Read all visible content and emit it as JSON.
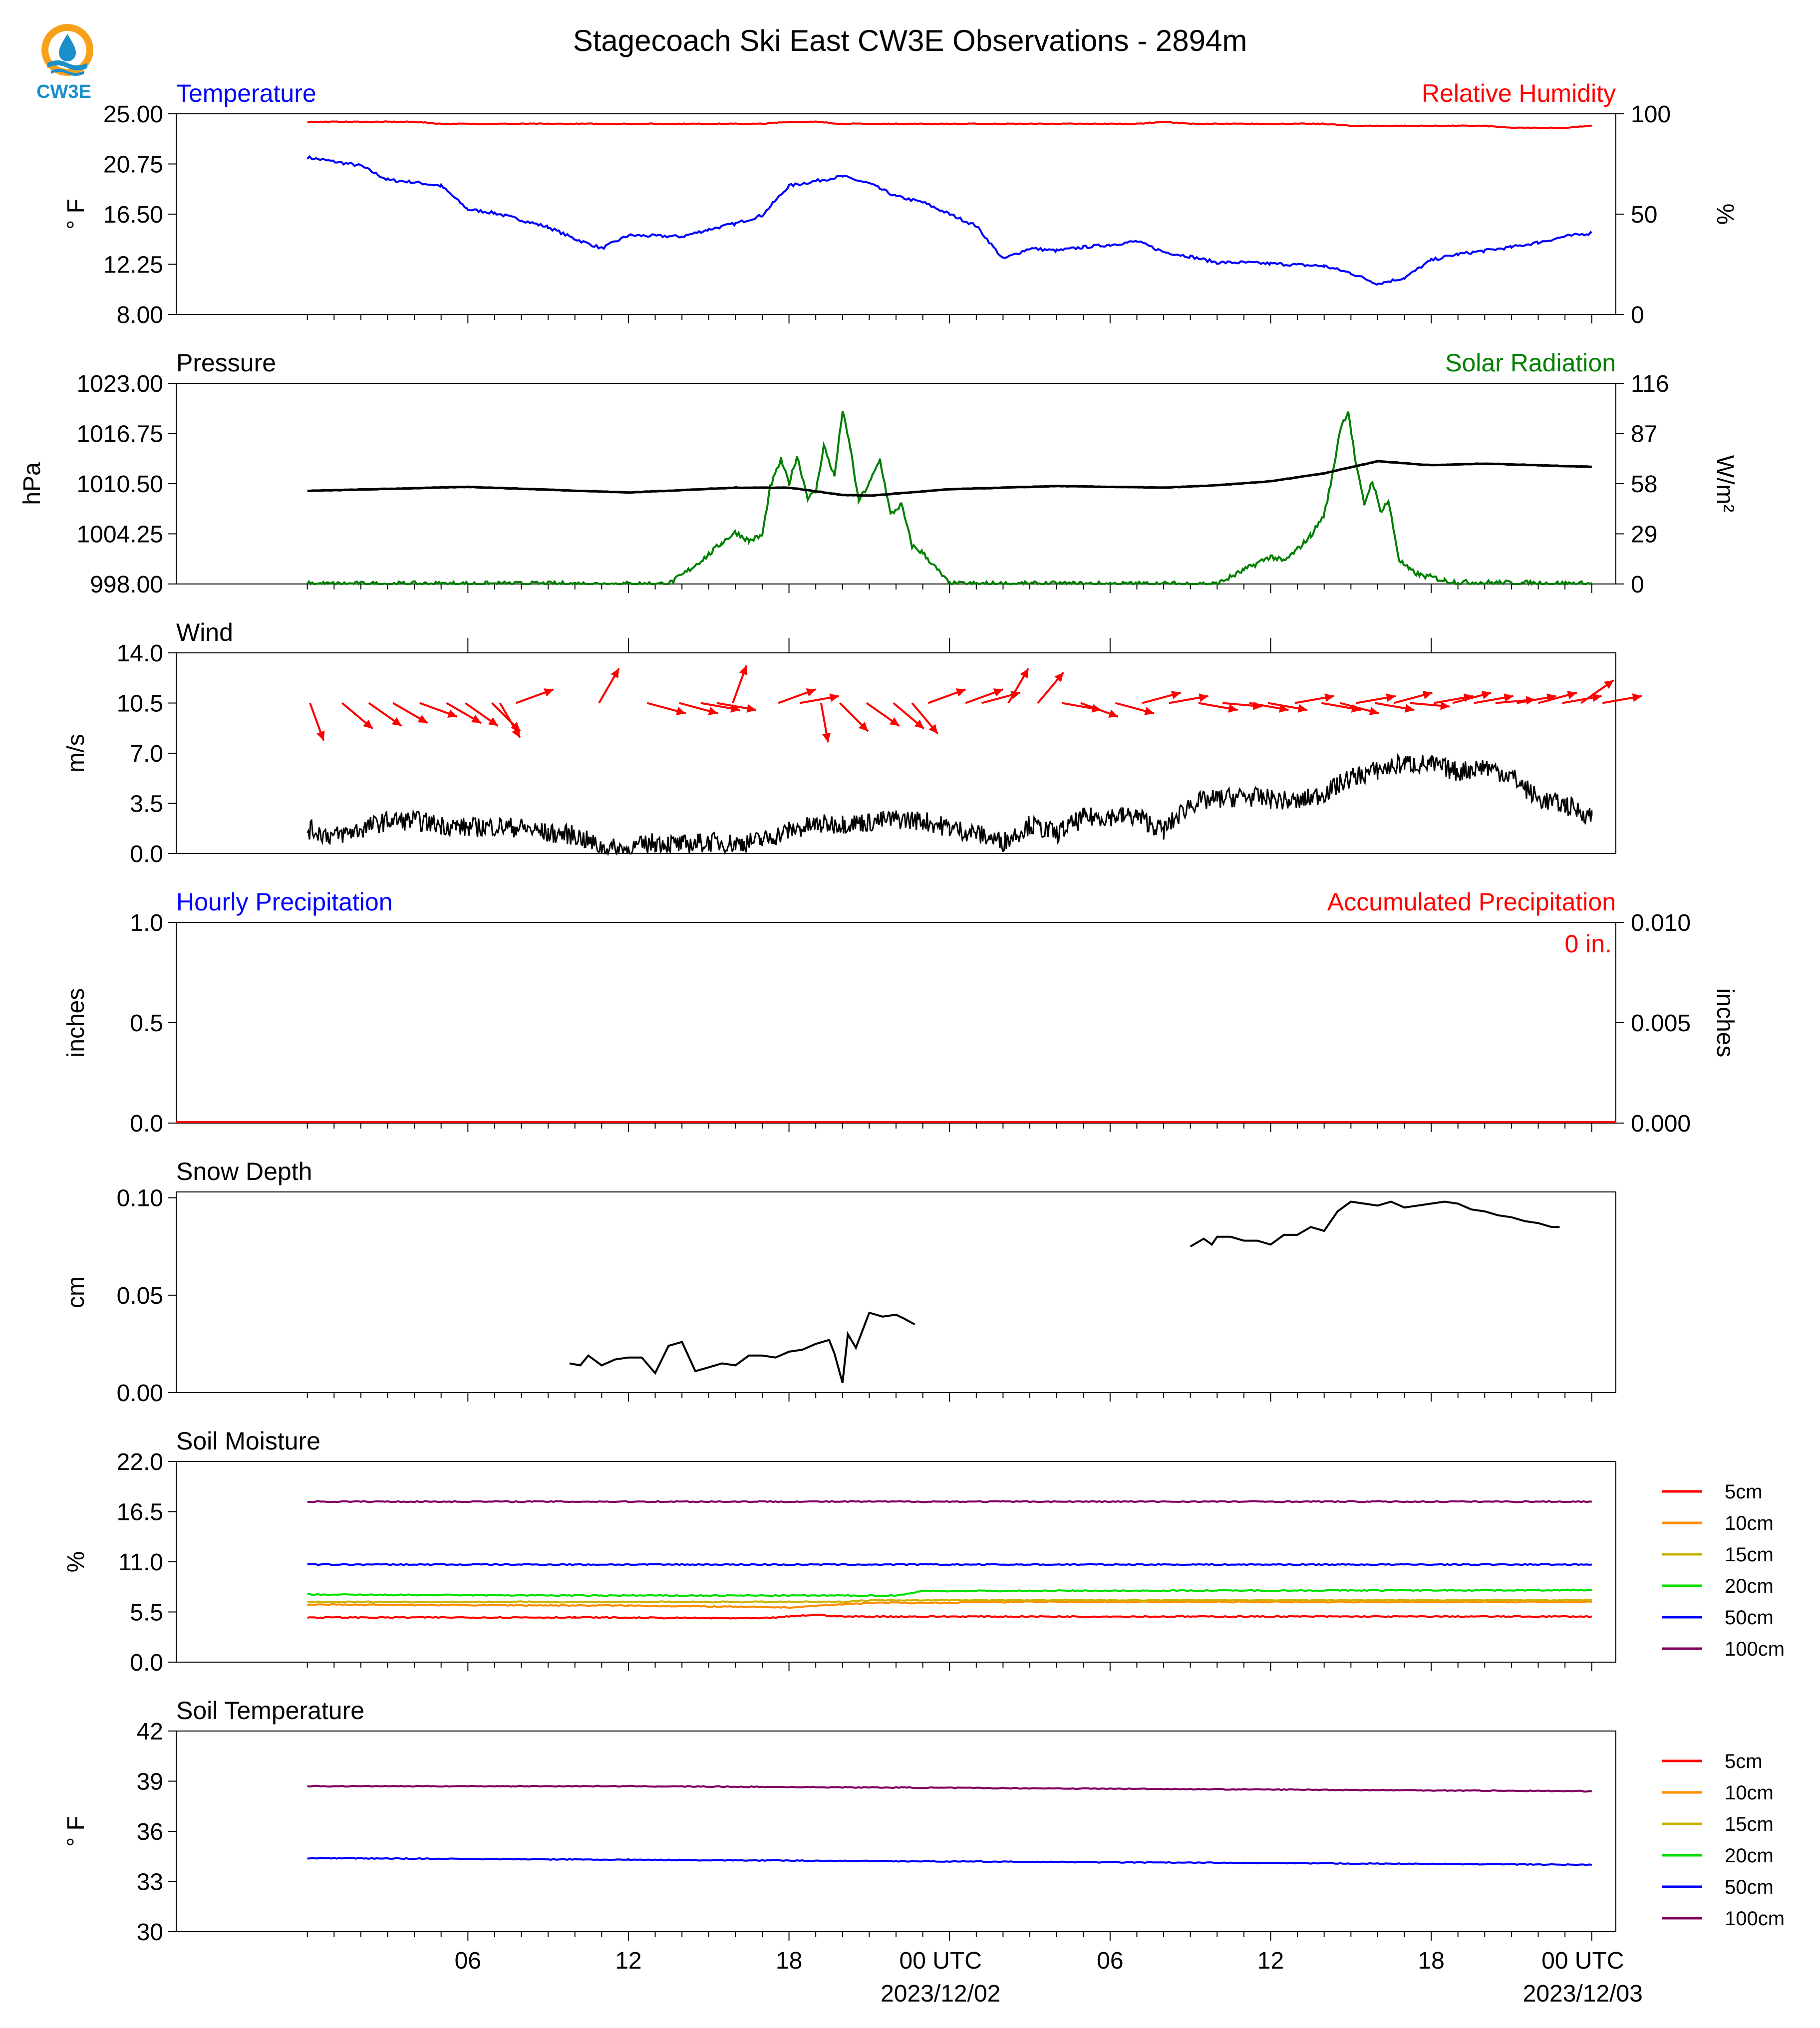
{
  "page": {
    "title": "Stagecoach Ski East CW3E Observations - 2894m",
    "logo_text": "CW3E"
  },
  "time_axis": {
    "tick_labels": [
      "06",
      "12",
      "18",
      "00 UTC",
      "06",
      "12",
      "18",
      "00 UTC"
    ],
    "date_labels": [
      "2023/12/02",
      "2023/12/03"
    ]
  },
  "colors": {
    "blue": "#0000ff",
    "red": "#ff0000",
    "green": "#008000",
    "black": "#000000",
    "soil": {
      "5cm": "#ff0000",
      "10cm": "#ff8c00",
      "15cm": "#c8b400",
      "20cm": "#00e000",
      "50cm": "#0000ff",
      "100cm": "#800060"
    }
  },
  "chart_data": [
    {
      "type": "line",
      "title_left": "Temperature",
      "title_right": "Relative Humidity",
      "ylabel_left": "° F",
      "ylabel_right": "%",
      "ylim_left": [
        8,
        25
      ],
      "ylim_right": [
        0,
        100
      ],
      "yticks_left": [
        "25.00",
        "20.75",
        "16.50",
        "12.25",
        "8.00"
      ],
      "yticks_right": [
        "100",
        "50",
        "0"
      ],
      "x_hours": [
        0,
        2,
        3,
        4,
        5,
        6,
        7,
        8,
        9,
        10,
        11,
        12,
        14,
        15,
        16,
        17,
        18,
        19,
        20,
        21,
        22,
        23,
        24,
        25,
        26,
        27,
        28,
        29,
        30,
        31,
        32,
        33,
        34,
        35,
        36,
        38,
        39,
        40,
        41,
        42,
        43,
        44,
        45,
        46,
        47,
        48
      ],
      "series": [
        {
          "name": "Temperature",
          "axis": "left",
          "color": "blue",
          "values": [
            21.3,
            20.6,
            19.4,
            19.2,
            18.9,
            16.9,
            16.6,
            16.0,
            15.4,
            14.4,
            13.6,
            14.7,
            14.6,
            15.2,
            15.7,
            16.4,
            18.9,
            19.3,
            19.7,
            19.1,
            18.0,
            17.5,
            16.5,
            15.5,
            12.7,
            13.6,
            13.4,
            13.7,
            13.9,
            14.2,
            13.3,
            12.9,
            12.4,
            12.4,
            12.3,
            12.1,
            11.5,
            10.6,
            11.1,
            12.6,
            13.1,
            13.4,
            13.7,
            14.1,
            14.6,
            14.9
          ]
        },
        {
          "name": "Relative Humidity",
          "axis": "right",
          "color": "red",
          "values": [
            96,
            96,
            96,
            96,
            95,
            95,
            95,
            95,
            95,
            95,
            95,
            95,
            95,
            95,
            95,
            95,
            96,
            96,
            95,
            95,
            95,
            95,
            95,
            95,
            95,
            95,
            95,
            95,
            95,
            95,
            96,
            95,
            95,
            95,
            95,
            95,
            94,
            94,
            94,
            94,
            94,
            94,
            93,
            93,
            93,
            94
          ]
        }
      ]
    },
    {
      "type": "line",
      "title_left": "Pressure",
      "title_right": "Solar Radiation",
      "ylabel_left": "hPa",
      "ylabel_right": "W/m²",
      "ylim_left": [
        998,
        1023
      ],
      "ylim_right": [
        0,
        116
      ],
      "yticks_left": [
        "1023.00",
        "1016.75",
        "1010.50",
        "1004.25",
        "998.00"
      ],
      "yticks_right": [
        "116",
        "87",
        "58",
        "29",
        "0"
      ],
      "pressure": {
        "name": "Pressure",
        "color": "black",
        "x_hours": [
          0,
          6,
          12,
          16,
          18,
          20,
          21,
          24,
          28,
          32,
          34,
          36,
          38,
          40,
          42,
          44,
          48
        ],
        "values": [
          1009.6,
          1010.1,
          1009.4,
          1010.0,
          1010.0,
          1009.1,
          1009.0,
          1009.8,
          1010.2,
          1010.0,
          1010.3,
          1010.8,
          1011.8,
          1013.3,
          1012.8,
          1013.0,
          1012.6
        ]
      },
      "solar": {
        "name": "Solar Radiation",
        "color": "green",
        "x_hours": [
          0,
          13.5,
          14,
          15,
          15.5,
          16,
          16.5,
          17,
          17.3,
          17.7,
          18,
          18.3,
          18.7,
          19,
          19.3,
          19.7,
          20,
          20.3,
          20.6,
          21,
          21.4,
          21.8,
          22.2,
          22.6,
          23,
          24,
          34,
          35,
          35.5,
          36,
          36.5,
          37,
          37.5,
          38,
          38.3,
          38.6,
          38.9,
          39.2,
          39.5,
          39.8,
          40.1,
          40.4,
          40.8,
          41.2,
          41.6,
          42,
          42.5,
          43,
          48
        ],
        "values": [
          0,
          0,
          5,
          17,
          24,
          30,
          25,
          28,
          56,
          72,
          58,
          74,
          50,
          53,
          80,
          62,
          100,
          78,
          48,
          58,
          72,
          40,
          46,
          22,
          18,
          0,
          0,
          8,
          12,
          16,
          13,
          20,
          28,
          40,
          62,
          90,
          100,
          68,
          46,
          60,
          42,
          48,
          14,
          8,
          5,
          4,
          2,
          1,
          0
        ]
      }
    },
    {
      "type": "line",
      "title_left": "Wind",
      "ylabel_left": "m/s",
      "ylim_left": [
        0,
        14
      ],
      "yticks_left": [
        "14.0",
        "10.5",
        "7.0",
        "3.5",
        "0.0"
      ],
      "speed": {
        "name": "Wind Speed",
        "color": "black",
        "x_hours": [
          0,
          1,
          2,
          3,
          4,
          5,
          6,
          7,
          8,
          9,
          10,
          11,
          12,
          13,
          14,
          15,
          16,
          17,
          18,
          19,
          20,
          21,
          22,
          23,
          24,
          25,
          26,
          27,
          28,
          29,
          30,
          31,
          32,
          33,
          34,
          35,
          36,
          37,
          38,
          39,
          40,
          41,
          42,
          43,
          44,
          45,
          46,
          47,
          48
        ],
        "values": [
          1.7,
          1.2,
          1.7,
          2.3,
          2.3,
          2.0,
          1.8,
          1.9,
          1.8,
          1.4,
          1.3,
          0.4,
          0.3,
          0.8,
          0.6,
          0.8,
          0.7,
          0.9,
          1.6,
          2.0,
          2.1,
          2.2,
          2.4,
          2.3,
          1.8,
          1.4,
          0.8,
          2.0,
          1.4,
          2.5,
          2.6,
          2.6,
          1.6,
          3.5,
          3.8,
          4.0,
          3.8,
          3.6,
          4.2,
          5.3,
          5.8,
          6.3,
          6.2,
          5.7,
          6.1,
          5.4,
          3.8,
          3.4,
          2.6
        ]
      },
      "direction_arrows": {
        "color": "red",
        "note": "direction each arrow points, degrees (0 = right, 90 = up)",
        "x_hours": [
          0.1,
          1.3,
          2.3,
          3.2,
          4.2,
          5.2,
          5.9,
          6.9,
          7.2,
          7.8,
          10.9,
          12.7,
          13.9,
          14.7,
          15.3,
          15.9,
          17.6,
          18.4,
          19.2,
          19.9,
          20.9,
          21.9,
          22.6,
          23.2,
          24.6,
          25.2,
          26.2,
          27.3,
          28.2,
          28.9,
          30.2,
          31.2,
          32.2,
          33.3,
          34.2,
          35.2,
          35.9,
          36.9,
          37.9,
          38.6,
          39.2,
          39.9,
          40.6,
          41.2,
          42.1,
          42.8,
          43.6,
          44.4,
          45.2,
          46.0,
          46.9,
          47.6,
          48.4
        ],
        "angles": [
          -70,
          -40,
          -35,
          -30,
          -20,
          -30,
          -35,
          -45,
          -60,
          20,
          60,
          -15,
          -15,
          -10,
          -10,
          70,
          20,
          10,
          -80,
          -45,
          -35,
          -40,
          -50,
          20,
          20,
          15,
          60,
          50,
          -10,
          -20,
          -15,
          15,
          10,
          -10,
          -5,
          -10,
          -10,
          10,
          -10,
          -15,
          10,
          -10,
          15,
          -5,
          10,
          15,
          10,
          5,
          10,
          15,
          10,
          35,
          10
        ]
      }
    },
    {
      "type": "line",
      "title_left": "Hourly Precipitation",
      "title_right": "Accumulated Precipitation",
      "annotation": "0 in.",
      "ylabel_left": "inches",
      "ylabel_right": "inches",
      "ylim_left": [
        0,
        1
      ],
      "ylim_right": [
        0,
        0.01
      ],
      "yticks_left": [
        "1.0",
        "0.5",
        "0.0"
      ],
      "yticks_right": [
        "0.010",
        "0.005",
        "0.000"
      ],
      "series": [
        {
          "name": "Hourly Precipitation",
          "color": "blue",
          "values": [
            0,
            0
          ]
        },
        {
          "name": "Accumulated Precipitation",
          "color": "red",
          "values": [
            0,
            0
          ]
        }
      ]
    },
    {
      "type": "line",
      "title_left": "Snow Depth",
      "ylabel_left": "cm",
      "ylim_left": [
        0,
        0.103
      ],
      "yticks_left": [
        "0.10",
        "0.05",
        "0.00"
      ],
      "segments": [
        {
          "x_hours": [
            9.8,
            10.2,
            10.5,
            11,
            11.5,
            12,
            12.5,
            13,
            13.5,
            14,
            14.5,
            15,
            15.5,
            16,
            16.5,
            17,
            17.5,
            18,
            18.5,
            19,
            19.5,
            19.7,
            20,
            20.2,
            20.5,
            21,
            21.5,
            22,
            22.3,
            22.7
          ],
          "values": [
            0.015,
            0.014,
            0.019,
            0.014,
            0.017,
            0.018,
            0.018,
            0.01,
            0.024,
            0.026,
            0.011,
            0.013,
            0.015,
            0.014,
            0.019,
            0.019,
            0.018,
            0.021,
            0.022,
            0.025,
            0.027,
            0.02,
            0.005,
            0.03,
            0.023,
            0.041,
            0.039,
            0.04,
            0.038,
            0.035
          ]
        },
        {
          "x_hours": [
            33.0,
            33.5,
            33.8,
            34,
            34.5,
            35,
            35.5,
            36,
            36.5,
            37,
            37.5,
            38,
            38.5,
            39,
            39.5,
            40,
            40.5,
            41,
            41.5,
            42,
            42.5,
            43,
            43.5,
            44,
            44.5,
            45,
            45.5,
            46,
            46.5,
            46.8
          ],
          "values": [
            0.075,
            0.079,
            0.076,
            0.08,
            0.08,
            0.078,
            0.078,
            0.076,
            0.081,
            0.081,
            0.085,
            0.083,
            0.093,
            0.098,
            0.097,
            0.096,
            0.098,
            0.095,
            0.096,
            0.097,
            0.098,
            0.097,
            0.094,
            0.093,
            0.091,
            0.09,
            0.088,
            0.087,
            0.085,
            0.085
          ]
        }
      ]
    },
    {
      "type": "line",
      "title_left": "Soil Moisture",
      "ylabel_left": "%",
      "ylim_left": [
        0,
        22
      ],
      "yticks_left": [
        "22.0",
        "16.5",
        "11.0",
        "5.5",
        "0.0"
      ],
      "legend": [
        "5cm",
        "10cm",
        "15cm",
        "20cm",
        "50cm",
        "100cm"
      ],
      "series": [
        {
          "name": "5cm",
          "color": "5cm",
          "x_hours": [
            0,
            10,
            17,
            19,
            20,
            48
          ],
          "values": [
            4.9,
            4.9,
            4.8,
            5.2,
            5.0,
            5.0
          ]
        },
        {
          "name": "10cm",
          "color": "10cm",
          "x_hours": [
            0,
            12,
            18,
            21,
            24,
            25,
            48
          ],
          "values": [
            6.3,
            6.2,
            6.0,
            6.5,
            6.5,
            6.6,
            6.6
          ]
        },
        {
          "name": "15cm",
          "color": "15cm",
          "x_hours": [
            0,
            20,
            21,
            48
          ],
          "values": [
            6.6,
            6.6,
            6.8,
            6.8
          ]
        },
        {
          "name": "20cm",
          "color": "20cm",
          "x_hours": [
            0,
            11,
            22,
            23,
            48
          ],
          "values": [
            7.4,
            7.3,
            7.3,
            7.8,
            7.9
          ]
        },
        {
          "name": "50cm",
          "color": "50cm",
          "x_hours": [
            0,
            48
          ],
          "values": [
            10.7,
            10.7
          ]
        },
        {
          "name": "100cm",
          "color": "100cm",
          "x_hours": [
            0,
            48
          ],
          "values": [
            17.6,
            17.6
          ]
        }
      ]
    },
    {
      "type": "line",
      "title_left": "Soil Temperature",
      "ylabel_left": "° F",
      "ylim_left": [
        30,
        42
      ],
      "yticks_left": [
        "42",
        "39",
        "36",
        "33",
        "30"
      ],
      "legend": [
        "5cm",
        "10cm",
        "15cm",
        "20cm",
        "50cm",
        "100cm"
      ],
      "series": [
        {
          "name": "100cm",
          "color": "100cm",
          "x_hours": [
            0,
            12,
            24,
            36,
            48
          ],
          "values": [
            38.7,
            38.7,
            38.6,
            38.5,
            38.4
          ]
        },
        {
          "name": "50cm",
          "color": "50cm",
          "x_hours": [
            0,
            12,
            24,
            36,
            48
          ],
          "values": [
            34.4,
            34.3,
            34.2,
            34.1,
            34.0
          ]
        }
      ]
    }
  ]
}
